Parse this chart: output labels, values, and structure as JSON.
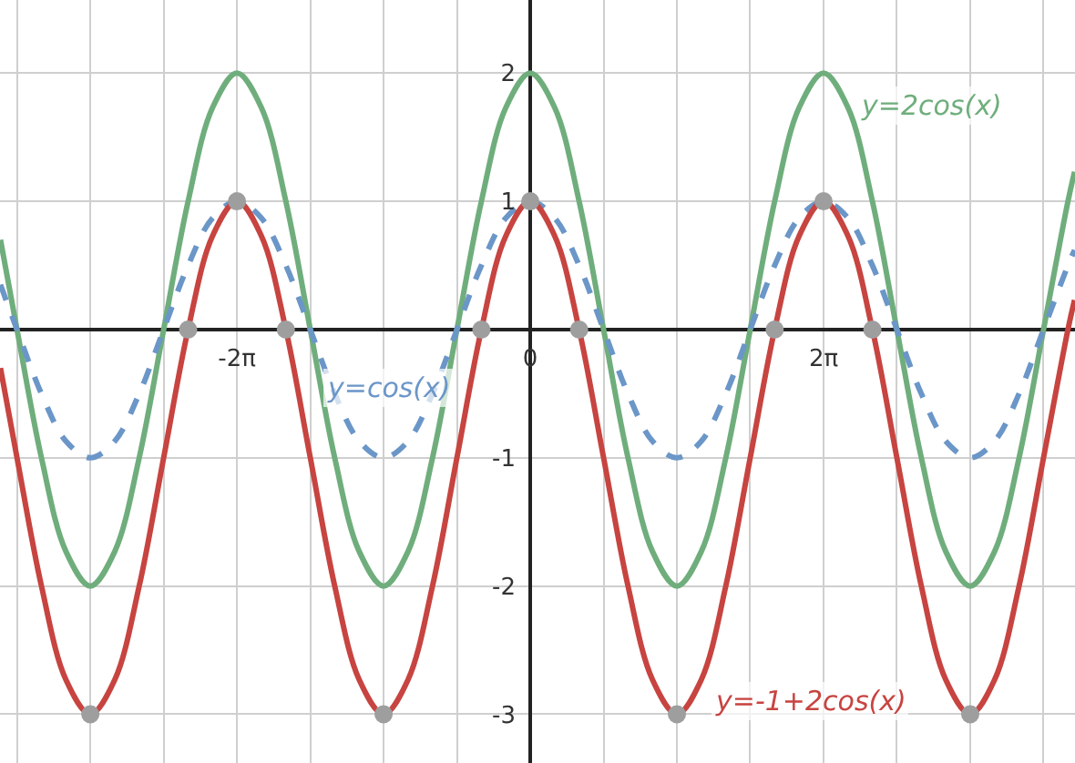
{
  "chart_data": {
    "type": "line",
    "x": [
      -11.35,
      -10.996,
      -10.472,
      -9.948,
      -9.425,
      -8.901,
      -8.378,
      -7.854,
      -7.33,
      -6.807,
      -6.283,
      -5.76,
      -5.236,
      -4.712,
      -4.189,
      -3.665,
      -3.142,
      -2.618,
      -2.094,
      -1.571,
      -1.047,
      -0.524,
      0,
      0.524,
      1.047,
      1.571,
      2.094,
      2.618,
      3.142,
      3.665,
      4.189,
      4.712,
      5.236,
      5.76,
      6.283,
      6.807,
      7.33,
      7.854,
      8.378,
      8.901,
      9.425,
      9.948,
      10.472,
      10.996,
      11.519,
      11.66
    ],
    "series": [
      {
        "name": "y=2cos(x)",
        "color": "#6fae7c",
        "line_style": "solid",
        "marker": "none",
        "values": [
          0.7,
          0,
          -1,
          -1.73,
          -2,
          -1.73,
          -1,
          0,
          1,
          1.73,
          2,
          1.73,
          1,
          0,
          -1,
          -1.73,
          -2,
          -1.73,
          -1,
          0,
          1,
          1.73,
          2,
          1.73,
          1,
          0,
          -1,
          -1.73,
          -2,
          -1.73,
          -1,
          0,
          1,
          1.73,
          2,
          1.73,
          1,
          0,
          -1,
          -1.73,
          -2,
          -1.73,
          -1,
          0,
          1,
          1.23
        ]
      },
      {
        "name": "y=cos(x)",
        "color": "#6b96c8",
        "line_style": "dashed",
        "marker": "none",
        "values": [
          0.35,
          0,
          -0.5,
          -0.87,
          -1,
          -0.87,
          -0.5,
          0,
          0.5,
          0.87,
          1,
          0.87,
          0.5,
          0,
          -0.5,
          -0.87,
          -1,
          -0.87,
          -0.5,
          0,
          0.5,
          0.87,
          1,
          0.87,
          0.5,
          0,
          -0.5,
          -0.87,
          -1,
          -0.87,
          -0.5,
          0,
          0.5,
          0.87,
          1,
          0.87,
          0.5,
          0,
          -0.5,
          -0.87,
          -1,
          -0.87,
          -0.5,
          0,
          0.5,
          0.62
        ]
      },
      {
        "name": "y=-1+2cos(x)",
        "color": "#c74440",
        "line_style": "solid",
        "marker": "none",
        "values": [
          -0.3,
          -1,
          -2,
          -2.73,
          -3,
          -2.73,
          -2,
          -1,
          0,
          0.73,
          1,
          0.73,
          0,
          -1,
          -2,
          -2.73,
          -3,
          -2.73,
          -2,
          -1,
          0,
          0.73,
          1,
          0.73,
          0,
          -1,
          -2,
          -2.73,
          -3,
          -2.73,
          -2,
          -1,
          0,
          0.73,
          1,
          0.73,
          0,
          -1,
          -2,
          -2.73,
          -3,
          -2.73,
          -2,
          -1,
          0,
          0.23
        ]
      },
      {
        "type": "scatter",
        "color": "#9e9e9e",
        "marker": "circle",
        "x": [
          -9.425,
          -7.33,
          -6.283,
          -5.236,
          -3.142,
          -1.047,
          0,
          1.047,
          3.142,
          5.236,
          6.283,
          7.33,
          9.425
        ],
        "values": [
          -3,
          0,
          1,
          0,
          -3,
          0,
          1,
          0,
          -3,
          0,
          1,
          0,
          -3
        ]
      }
    ],
    "xlim": [
      -11.36,
      11.67
    ],
    "ylim": [
      -3.38,
      2.57
    ],
    "xticks": [
      {
        "value": -10.996,
        "label": null
      },
      {
        "value": -9.425,
        "label": null
      },
      {
        "value": -7.854,
        "label": null
      },
      {
        "value": -6.283,
        "label": "-2π"
      },
      {
        "value": -4.712,
        "label": null
      },
      {
        "value": -3.142,
        "label": null
      },
      {
        "value": -1.571,
        "label": null
      },
      {
        "value": 0,
        "label": "0"
      },
      {
        "value": 1.571,
        "label": null
      },
      {
        "value": 3.142,
        "label": null
      },
      {
        "value": 4.712,
        "label": null
      },
      {
        "value": 6.283,
        "label": "2π"
      },
      {
        "value": 7.854,
        "label": null
      },
      {
        "value": 9.425,
        "label": null
      },
      {
        "value": 10.996,
        "label": null
      }
    ],
    "yticks": [
      -3,
      -2,
      -1,
      {
        "value": 0,
        "label": null
      },
      1,
      2
    ],
    "grid": true,
    "legend": false
  }
}
